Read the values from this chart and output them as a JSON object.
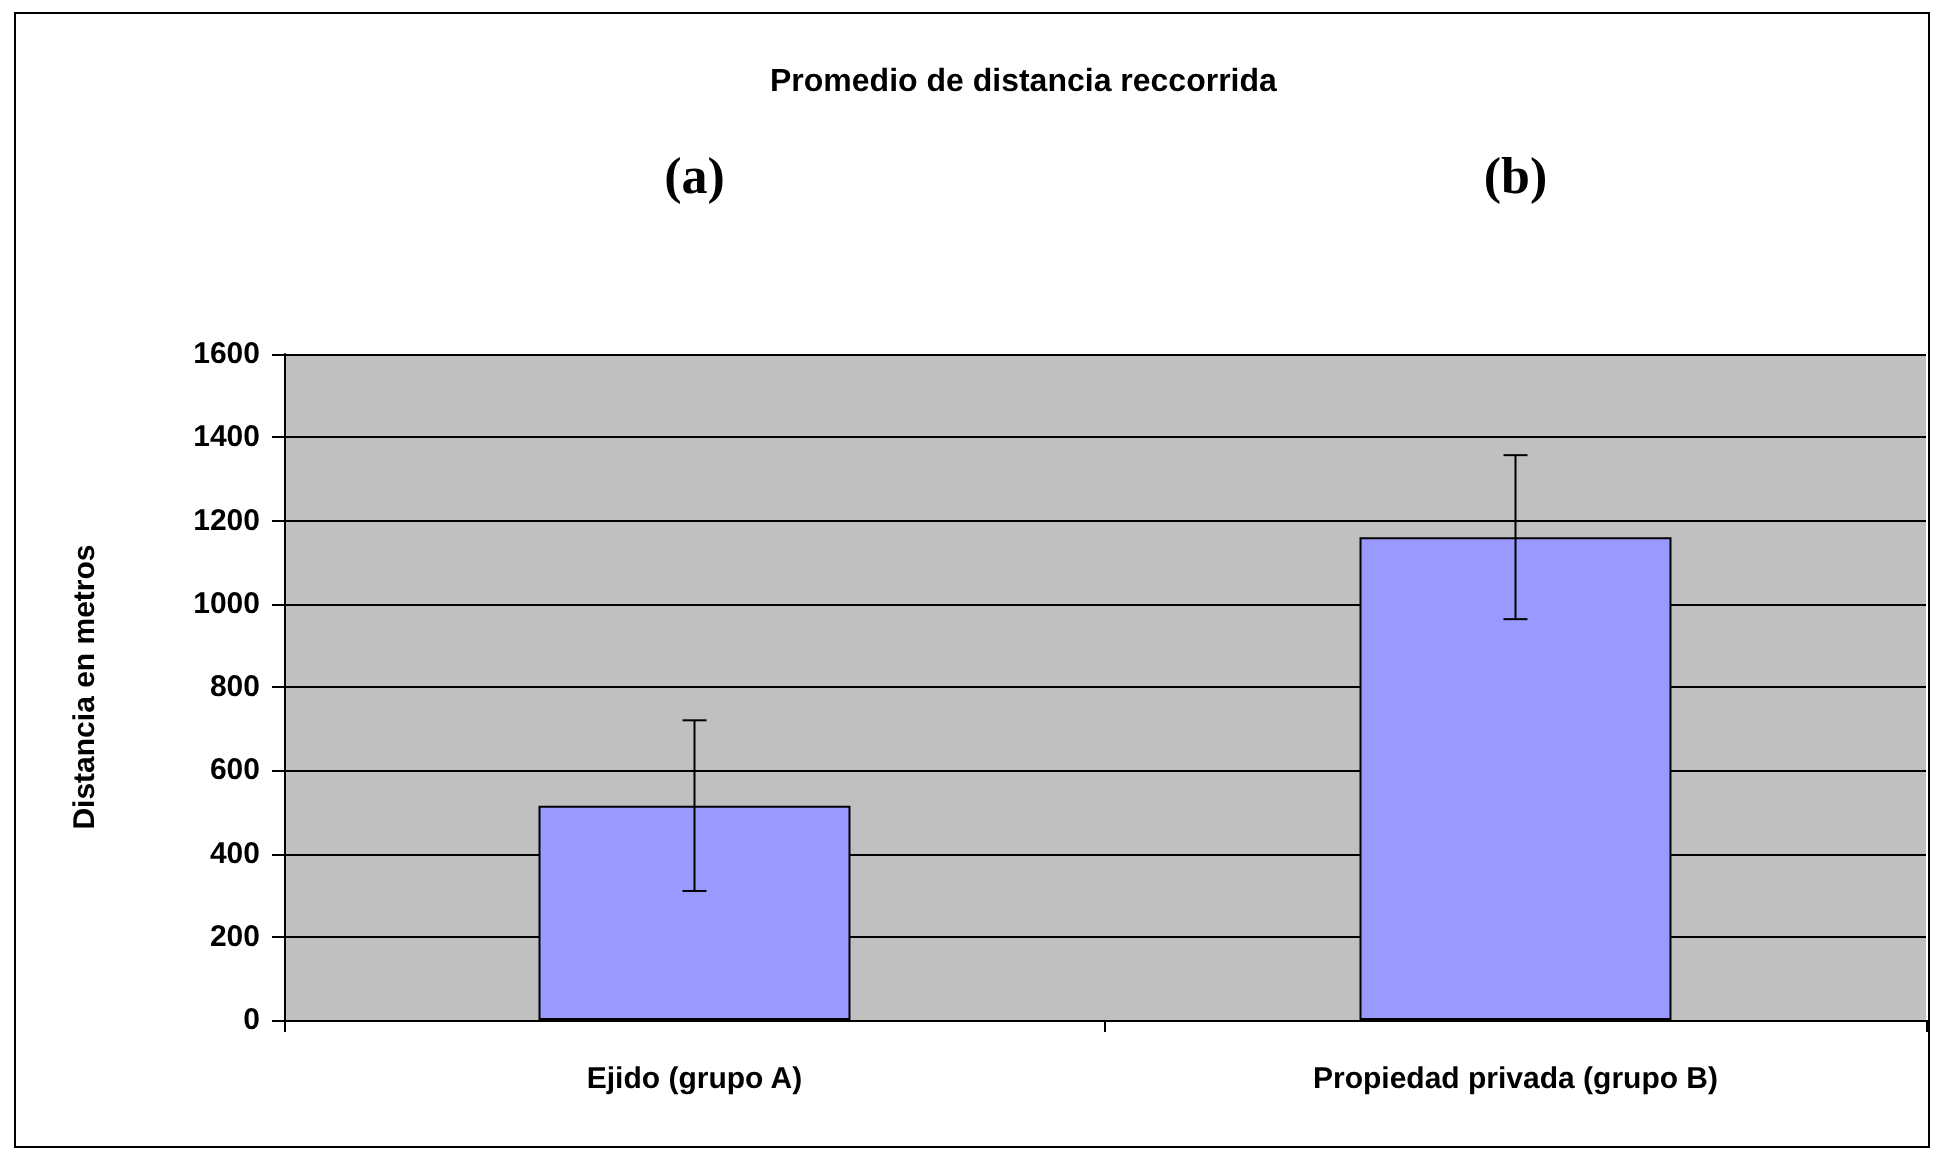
{
  "chart_data": {
    "type": "bar",
    "title": "Promedio de distancia reccorrida",
    "ylabel": "Distancia en metros",
    "categories": [
      "Ejido (grupo A)",
      "Propiedad privada (grupo B)"
    ],
    "values": [
      515,
      1160
    ],
    "color": "#9999ff",
    "errors": [
      205,
      197
    ],
    "annotations": [
      "(a)",
      "(b)"
    ],
    "ylim": [
      0,
      1600
    ],
    "yticks": [
      0,
      200,
      400,
      600,
      800,
      1000,
      1200,
      1400,
      1600
    ],
    "grid": "y"
  }
}
